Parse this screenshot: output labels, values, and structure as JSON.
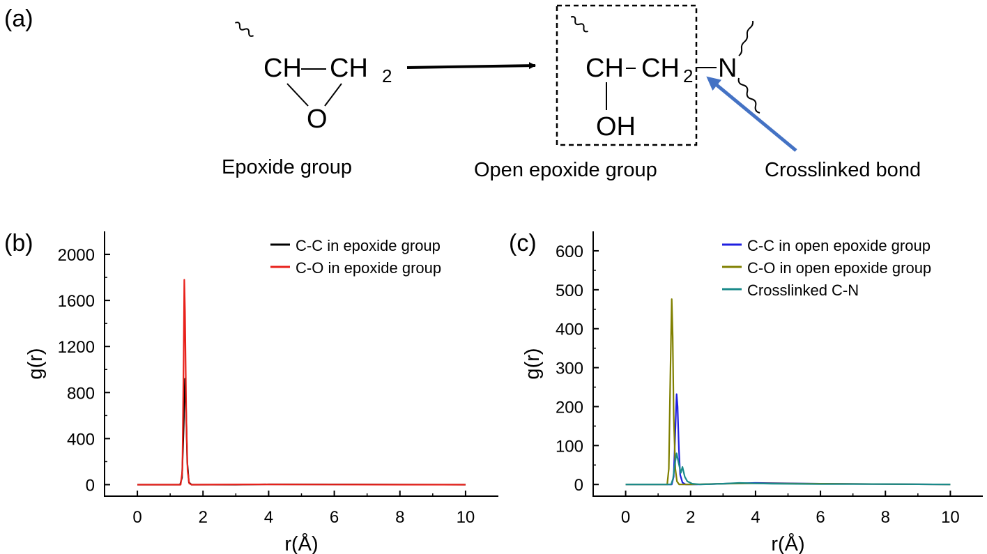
{
  "panel_a": {
    "label": "(a)",
    "reactant": {
      "ch": "CH",
      "ch2": "CH",
      "ch2_sub": "2",
      "o": "O",
      "caption": "Epoxide group"
    },
    "product": {
      "ch": "CH",
      "dash": "-",
      "ch2": "CH",
      "ch2_sub": "2",
      "n": "N",
      "oh": "OH",
      "caption": "Open epoxide group"
    },
    "crosslink_caption": "Crosslinked bond",
    "colors": {
      "arrow": "#000000",
      "crosslink_arrow": "#4472c4"
    }
  },
  "chart_data": [
    {
      "panel_label": "(b)",
      "type": "line",
      "xlabel": "r(Å)",
      "ylabel": "g(r)",
      "xlim": [
        -1,
        11
      ],
      "ylim": [
        -100,
        2200
      ],
      "xticks": [
        0,
        2,
        4,
        6,
        8,
        10
      ],
      "yticks": [
        0,
        400,
        800,
        1200,
        1600,
        2000
      ],
      "grid": false,
      "legend_position": "top-right",
      "series": [
        {
          "name": "C-C in epoxide group",
          "color": "#000000",
          "x": [
            0,
            1.3,
            1.36,
            1.41,
            1.45,
            1.48,
            1.52,
            1.57,
            1.65,
            3.0,
            4.0,
            6.0,
            8.0,
            10.0
          ],
          "y": [
            0,
            0,
            60,
            500,
            920,
            700,
            200,
            20,
            0,
            0,
            3,
            2,
            1,
            0
          ]
        },
        {
          "name": "C-O in epoxide group",
          "color": "#e8211b",
          "x": [
            0,
            1.32,
            1.37,
            1.41,
            1.43,
            1.45,
            1.49,
            1.53,
            1.58,
            1.65,
            3.5,
            6.0,
            8.0,
            10.0
          ],
          "y": [
            0,
            0,
            120,
            1100,
            1780,
            1500,
            600,
            120,
            10,
            0,
            2,
            1,
            0,
            0
          ]
        }
      ]
    },
    {
      "panel_label": "(c)",
      "type": "line",
      "xlabel": "r(Å)",
      "ylabel": "g(r)",
      "xlim": [
        -1,
        11
      ],
      "ylim": [
        -30,
        650
      ],
      "xticks": [
        0,
        2,
        4,
        6,
        8,
        10
      ],
      "yticks": [
        0,
        100,
        200,
        300,
        400,
        500,
        600
      ],
      "grid": false,
      "legend_position": "top-right",
      "series": [
        {
          "name": "C-C in open epoxide group",
          "color": "#1f1fe0",
          "x": [
            0,
            1.42,
            1.48,
            1.53,
            1.57,
            1.6,
            1.64,
            1.68,
            1.75,
            1.85,
            2.2,
            3.0,
            4.0,
            6.0,
            8.0,
            10.0
          ],
          "y": [
            0,
            0,
            20,
            140,
            232,
            200,
            90,
            25,
            5,
            0,
            0,
            2,
            4,
            2,
            1,
            0
          ]
        },
        {
          "name": "C-O in open epoxide group",
          "color": "#808000",
          "x": [
            0,
            1.28,
            1.33,
            1.38,
            1.42,
            1.45,
            1.48,
            1.53,
            1.58,
            1.65,
            2.0,
            3.0,
            4.0,
            6.0,
            8.0,
            10.0
          ],
          "y": [
            0,
            0,
            40,
            300,
            476,
            380,
            180,
            40,
            8,
            0,
            0,
            2,
            3,
            2,
            1,
            0
          ]
        },
        {
          "name": "Crosslinked C-N",
          "color": "#1a8a8a",
          "x": [
            0,
            1.4,
            1.46,
            1.52,
            1.57,
            1.62,
            1.7,
            1.75,
            1.82,
            1.9,
            2.05,
            2.3,
            3.0,
            3.5,
            4.0,
            4.5,
            6.0,
            8.0,
            10.0
          ],
          "y": [
            0,
            0,
            15,
            55,
            80,
            60,
            30,
            45,
            20,
            8,
            2,
            0,
            2,
            4,
            3,
            2,
            1,
            1,
            0
          ]
        }
      ]
    }
  ]
}
